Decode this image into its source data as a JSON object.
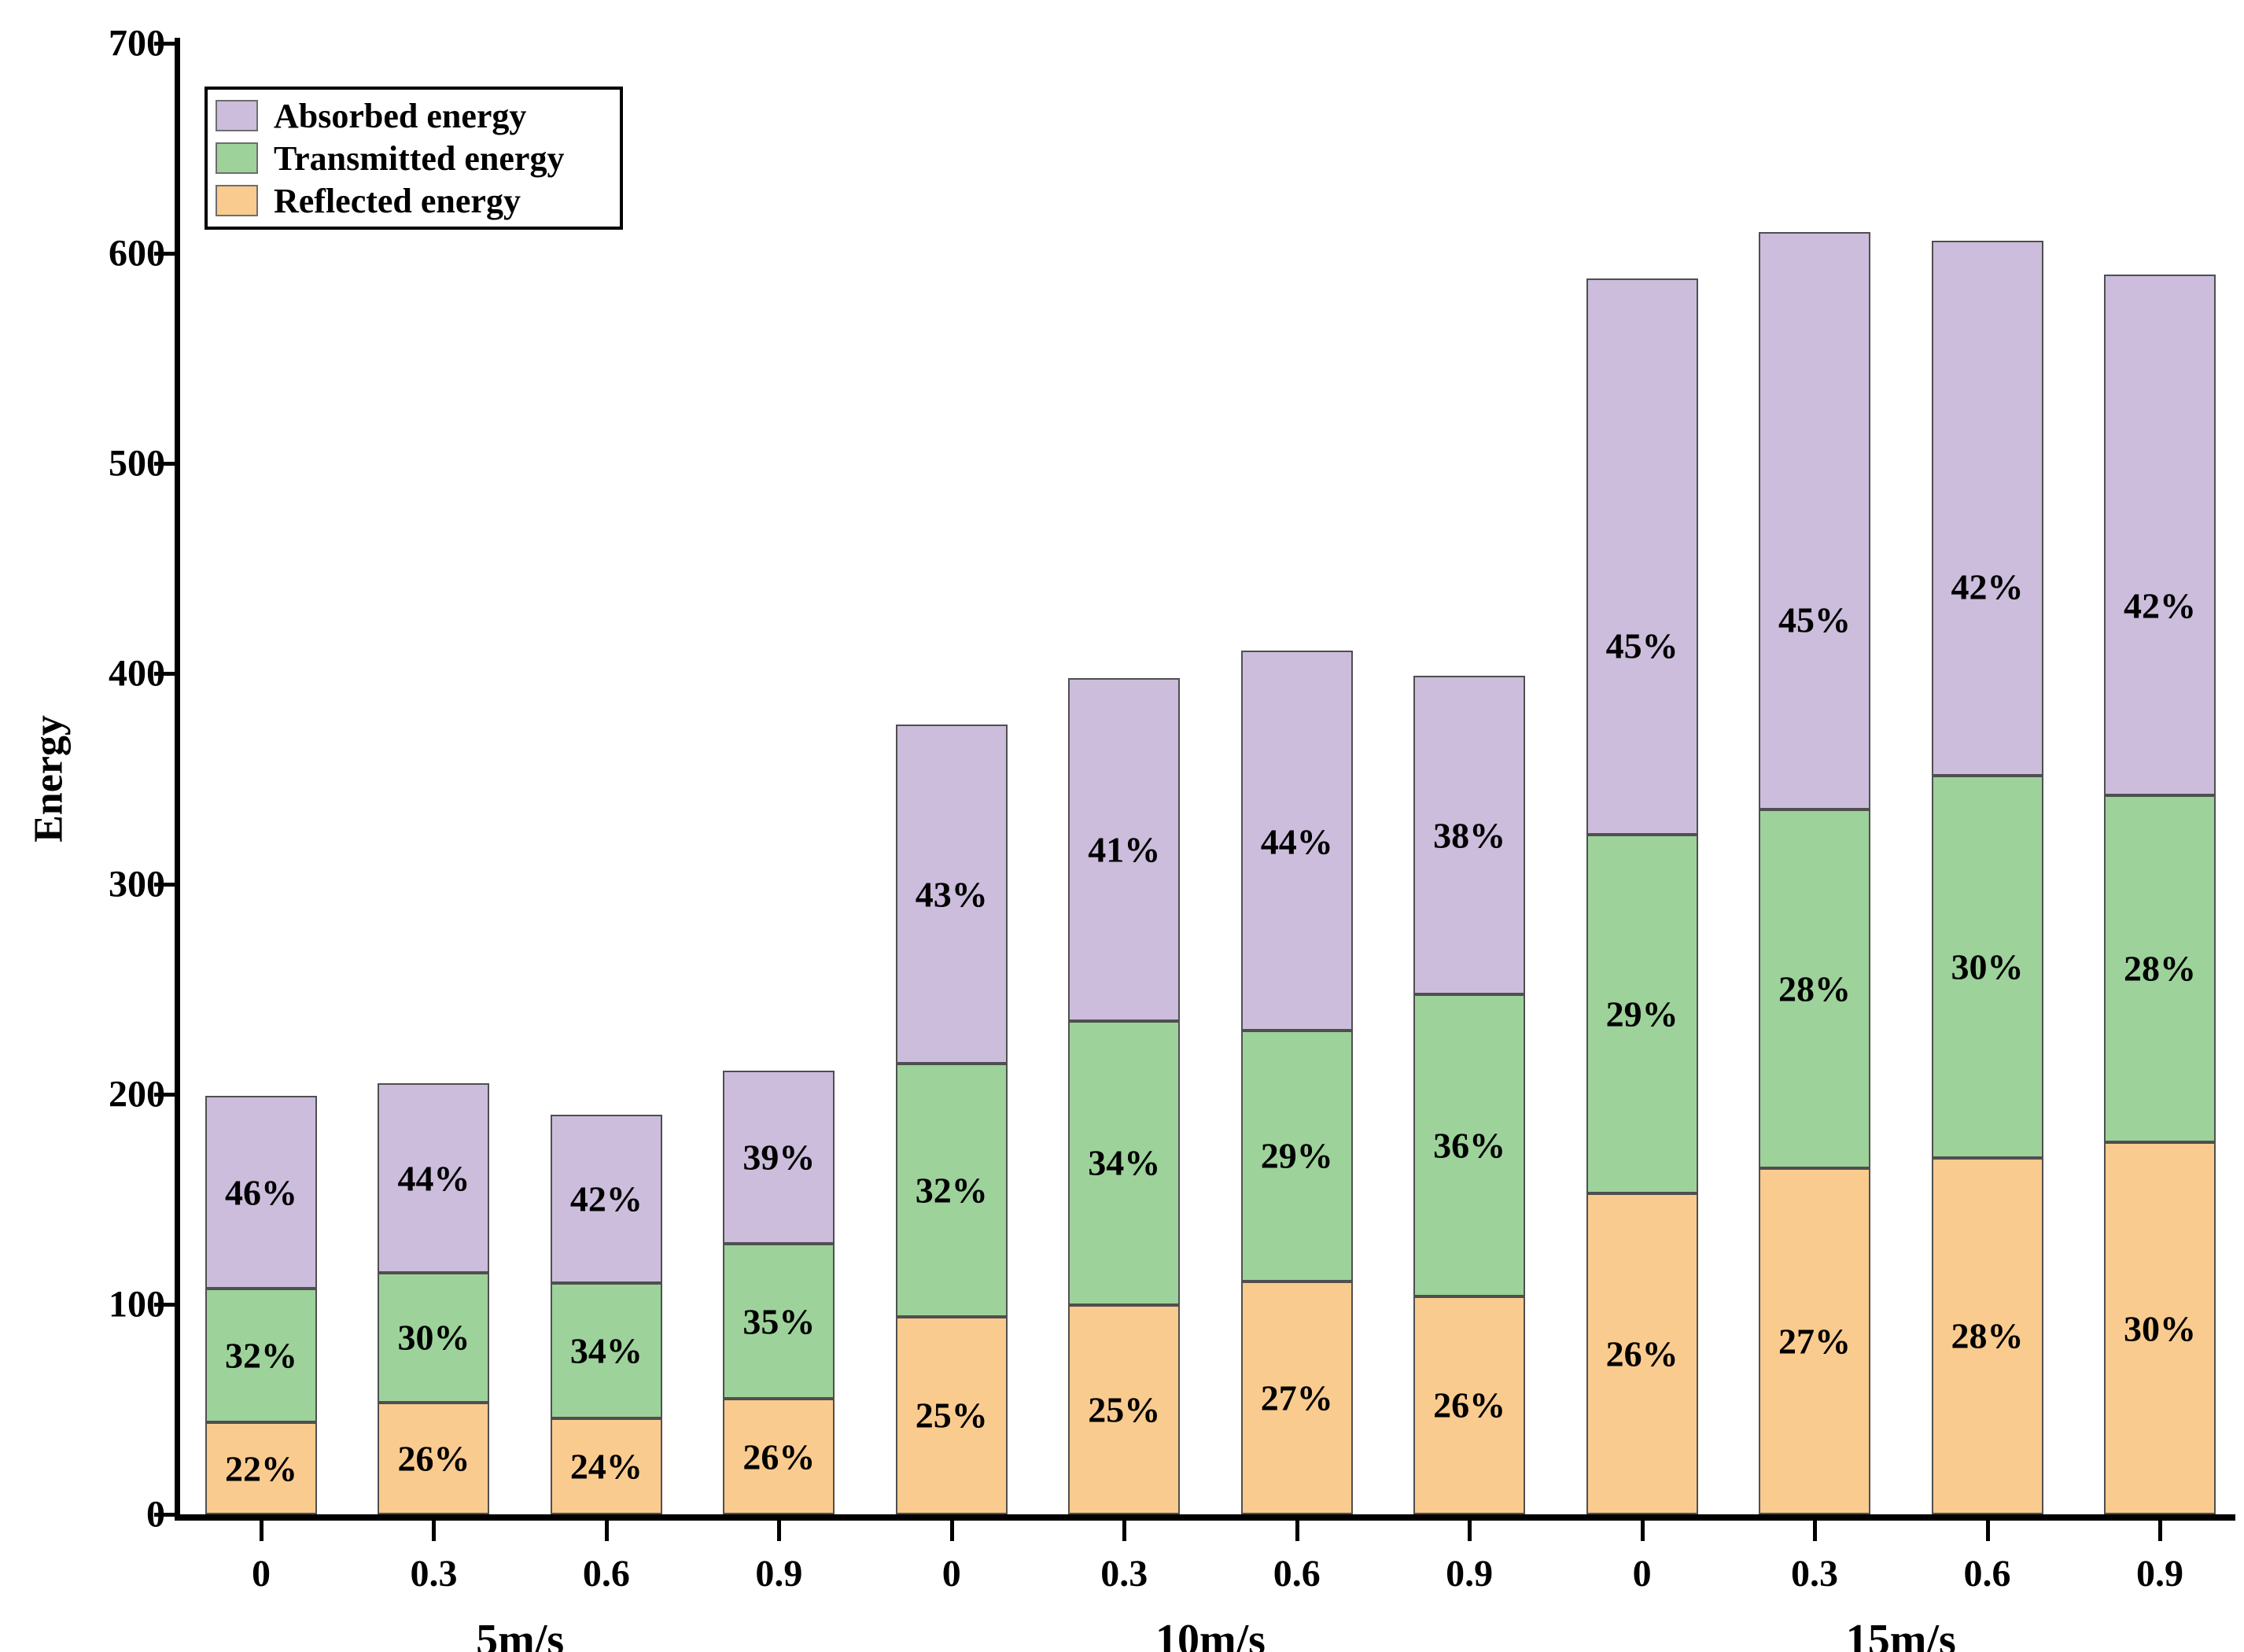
{
  "chart_data": {
    "type": "bar",
    "stacked": true,
    "title": "",
    "ylabel": "Energy",
    "xlabel": "",
    "ylim": [
      0,
      700
    ],
    "yticks": [
      0,
      100,
      200,
      300,
      400,
      500,
      600,
      700
    ],
    "grid": false,
    "legend_position": "upper-left",
    "legend": [
      {
        "name": "Absorbed energy",
        "color": "#CBBDDB"
      },
      {
        "name": "Transmitted energy",
        "color": "#9DD29B"
      },
      {
        "name": "Reflected energy",
        "color": "#FACB8E"
      }
    ],
    "stack_order_bottom_to_top": [
      "Reflected energy",
      "Transmitted energy",
      "Absorbed energy"
    ],
    "edge_color": "#4F4F4F",
    "groups": [
      {
        "label": "5m/s",
        "bars": [
          {
            "category": "0",
            "total": 199,
            "segments": [
              {
                "series": "Reflected energy",
                "pct": 22,
                "label": "22%"
              },
              {
                "series": "Transmitted energy",
                "pct": 32,
                "label": "32%"
              },
              {
                "series": "Absorbed energy",
                "pct": 46,
                "label": "46%"
              }
            ]
          },
          {
            "category": "0.3",
            "total": 205,
            "segments": [
              {
                "series": "Reflected energy",
                "pct": 26,
                "label": "26%"
              },
              {
                "series": "Transmitted energy",
                "pct": 30,
                "label": "30%"
              },
              {
                "series": "Absorbed energy",
                "pct": 44,
                "label": "44%"
              }
            ]
          },
          {
            "category": "0.6",
            "total": 190,
            "segments": [
              {
                "series": "Reflected energy",
                "pct": 24,
                "label": "24%"
              },
              {
                "series": "Transmitted energy",
                "pct": 34,
                "label": "34%"
              },
              {
                "series": "Absorbed energy",
                "pct": 42,
                "label": "42%"
              }
            ]
          },
          {
            "category": "0.9",
            "total": 211,
            "segments": [
              {
                "series": "Reflected energy",
                "pct": 26,
                "label": "26%"
              },
              {
                "series": "Transmitted energy",
                "pct": 35,
                "label": "35%"
              },
              {
                "series": "Absorbed energy",
                "pct": 39,
                "label": "39%"
              }
            ]
          }
        ]
      },
      {
        "label": "10m/s",
        "bars": [
          {
            "category": "0",
            "total": 376,
            "segments": [
              {
                "series": "Reflected energy",
                "pct": 25,
                "label": "25%"
              },
              {
                "series": "Transmitted energy",
                "pct": 32,
                "label": "32%"
              },
              {
                "series": "Absorbed energy",
                "pct": 43,
                "label": "43%"
              }
            ]
          },
          {
            "category": "0.3",
            "total": 398,
            "segments": [
              {
                "series": "Reflected energy",
                "pct": 25,
                "label": "25%"
              },
              {
                "series": "Transmitted energy",
                "pct": 34,
                "label": "34%"
              },
              {
                "series": "Absorbed energy",
                "pct": 41,
                "label": "41%"
              }
            ]
          },
          {
            "category": "0.6",
            "total": 411,
            "segments": [
              {
                "series": "Reflected energy",
                "pct": 27,
                "label": "27%"
              },
              {
                "series": "Transmitted energy",
                "pct": 29,
                "label": "29%"
              },
              {
                "series": "Absorbed energy",
                "pct": 44,
                "label": "44%"
              }
            ]
          },
          {
            "category": "0.9",
            "total": 399,
            "segments": [
              {
                "series": "Reflected energy",
                "pct": 26,
                "label": "26%"
              },
              {
                "series": "Transmitted energy",
                "pct": 36,
                "label": "36%"
              },
              {
                "series": "Absorbed energy",
                "pct": 38,
                "label": "38%"
              }
            ]
          }
        ]
      },
      {
        "label": "15m/s",
        "bars": [
          {
            "category": "0",
            "total": 588,
            "segments": [
              {
                "series": "Reflected energy",
                "pct": 26,
                "label": "26%"
              },
              {
                "series": "Transmitted energy",
                "pct": 29,
                "label": "29%"
              },
              {
                "series": "Absorbed energy",
                "pct": 45,
                "label": "45%"
              }
            ]
          },
          {
            "category": "0.3",
            "total": 610,
            "segments": [
              {
                "series": "Reflected energy",
                "pct": 27,
                "label": "27%"
              },
              {
                "series": "Transmitted energy",
                "pct": 28,
                "label": "28%"
              },
              {
                "series": "Absorbed energy",
                "pct": 45,
                "label": "45%"
              }
            ]
          },
          {
            "category": "0.6",
            "total": 606,
            "segments": [
              {
                "series": "Reflected energy",
                "pct": 28,
                "label": "28%"
              },
              {
                "series": "Transmitted energy",
                "pct": 30,
                "label": "30%"
              },
              {
                "series": "Absorbed energy",
                "pct": 42,
                "label": "42%"
              }
            ]
          },
          {
            "category": "0.9",
            "total": 590,
            "segments": [
              {
                "series": "Reflected energy",
                "pct": 30,
                "label": "30%"
              },
              {
                "series": "Transmitted energy",
                "pct": 28,
                "label": "28%"
              },
              {
                "series": "Absorbed energy",
                "pct": 42,
                "label": "42%"
              }
            ]
          }
        ]
      }
    ]
  }
}
